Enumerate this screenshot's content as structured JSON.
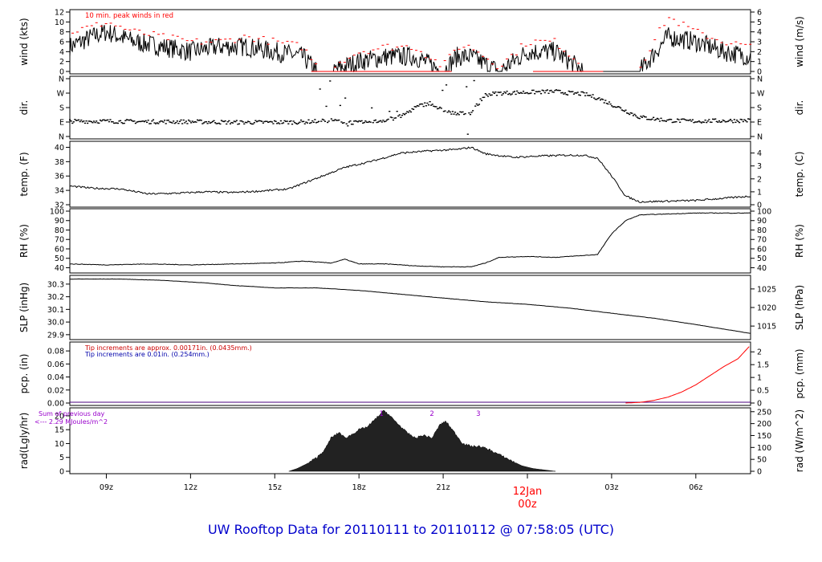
{
  "footer": {
    "title": "UW Rooftop Data for 20110111  to  20110112 @ 07:58:05  (UTC)"
  },
  "time_axis": {
    "ticks": [
      "09z",
      "12z",
      "15z",
      "18z",
      "21z",
      "00z",
      "03z",
      "06z"
    ],
    "day_marker": {
      "date": "12Jan",
      "hour": "00z",
      "color": "#ff0000"
    }
  },
  "colors": {
    "line": "#000000",
    "peak": "#ff0000",
    "pcp_line": "#ff0000",
    "note_blue": "#0000aa",
    "note_red": "#cc0000",
    "rad_note": "#9900cc",
    "rad_fill": "#222222"
  },
  "panels": {
    "wind": {
      "left_label": "wind (kts)",
      "right_label": "wind (m/s)",
      "left_ticks": [
        "0",
        "2",
        "4",
        "6",
        "8",
        "10",
        "12"
      ],
      "right_ticks": [
        "0",
        "1",
        "2",
        "3",
        "4",
        "5",
        "6"
      ],
      "note": "10 min. peak winds in red"
    },
    "dir": {
      "left_label": "dir.",
      "right_label": "dir.",
      "left_ticks": [
        "N",
        "E",
        "S",
        "W",
        "N"
      ],
      "right_ticks": [
        "N",
        "E",
        "S",
        "W",
        "N"
      ]
    },
    "temp": {
      "left_label": "temp. (F)",
      "right_label": "temp. (C)",
      "left_ticks": [
        "32",
        "34",
        "36",
        "38",
        "40"
      ],
      "right_ticks": [
        "0",
        "1",
        "2",
        "3",
        "4"
      ]
    },
    "rh": {
      "left_label": "RH (%)",
      "right_label": "RH (%)",
      "left_ticks": [
        "40",
        "50",
        "60",
        "70",
        "80",
        "90",
        "100"
      ],
      "right_ticks": [
        "40",
        "50",
        "60",
        "70",
        "80",
        "90",
        "100"
      ]
    },
    "slp": {
      "left_label": "SLP (inHg)",
      "right_label": "SLP (hPa)",
      "left_ticks": [
        "29.9",
        "30.0",
        "30.1",
        "30.2",
        "30.3"
      ],
      "right_ticks": [
        "1015",
        "1020",
        "1025"
      ]
    },
    "pcp": {
      "left_label": "pcp. (in)",
      "right_label": "pcp. (mm)",
      "left_ticks": [
        "0.00",
        "0.02",
        "0.04",
        "0.06",
        "0.08"
      ],
      "right_ticks": [
        "0",
        "0.5",
        "1",
        "1.5",
        "2"
      ],
      "note_red": "Tip increments are approx. 0.00171in. (0.0435mm.)",
      "note_blue": "Tip increments are 0.01in. (0.254mm.)"
    },
    "rad": {
      "left_label": "rad(Lgly/hr)",
      "right_label": "rad (W/m^2)",
      "left_ticks": [
        "0",
        "5",
        "10",
        "15",
        "20"
      ],
      "right_ticks": [
        "0",
        "50",
        "100",
        "150",
        "200",
        "250"
      ],
      "note1": "Sum of previous day",
      "note2": "<--- 2.29 MJoules/m^2",
      "markers": [
        "1",
        "2",
        "3"
      ]
    }
  },
  "chart_data": [
    {
      "type": "line",
      "title": "wind",
      "ylabel": "wind (kts)",
      "y2label": "wind (m/s)",
      "ylim": [
        0,
        12
      ],
      "x": [
        7.7,
        8.5,
        9.0,
        10.0,
        11.0,
        12.0,
        13.0,
        14.0,
        15.0,
        16.0,
        16.5,
        17.0,
        18.0,
        19.0,
        20.0,
        21.0,
        21.5,
        22.0,
        23.0,
        24.0,
        25.0,
        26.0,
        27.0,
        28.0,
        29.0,
        30.0,
        31.0,
        31.95
      ],
      "series": [
        {
          "values": [
            5,
            7,
            8,
            6,
            5,
            4,
            5,
            5,
            4,
            3,
            0,
            0,
            2,
            3,
            3,
            0,
            3,
            3,
            0,
            4,
            4,
            0,
            0,
            0,
            7,
            6,
            4,
            3
          ]
        },
        {
          "values": [
            8,
            9,
            10,
            8,
            7,
            6,
            6,
            7,
            6,
            5,
            1,
            1,
            4,
            5,
            5,
            1,
            5,
            5,
            1,
            6,
            6,
            1,
            1,
            1,
            11,
            8,
            6,
            5
          ]
        }
      ]
    },
    {
      "type": "scatter",
      "title": "dir.",
      "ylabel": "dir.",
      "ylim": [
        0,
        360
      ],
      "x": [
        7.7,
        9.0,
        10.5,
        12.0,
        13.5,
        15.0,
        16.0,
        16.5,
        17.0,
        17.5,
        18.0,
        18.5,
        19.0,
        19.5,
        20.0,
        20.5,
        21.0,
        21.5,
        22.0,
        22.5,
        23.0,
        24.0,
        25.0,
        25.5,
        26.0,
        26.5,
        27.0,
        28.0,
        29.0,
        30.0,
        31.0,
        31.95
      ],
      "values": [
        95,
        95,
        92,
        92,
        88,
        88,
        90,
        95,
        100,
        90,
        85,
        90,
        105,
        125,
        180,
        210,
        160,
        140,
        150,
        260,
        270,
        275,
        280,
        270,
        265,
        240,
        200,
        120,
        100,
        95,
        98,
        100
      ]
    },
    {
      "type": "line",
      "title": "temp.",
      "ylabel": "temp. (F)",
      "y2label": "temp. (C)",
      "ylim": [
        32,
        40.5
      ],
      "x": [
        7.7,
        8.5,
        9.5,
        10.5,
        11.5,
        12.5,
        13.5,
        14.5,
        15.5,
        16.5,
        17.5,
        18.5,
        19.5,
        20.5,
        21.5,
        22.0,
        22.5,
        23.5,
        24.5,
        25.5,
        26.0,
        26.5,
        27.0,
        27.5,
        28.0,
        29.0,
        30.0,
        31.0,
        31.95
      ],
      "values": [
        34.6,
        34.3,
        34.2,
        33.5,
        33.6,
        33.8,
        33.7,
        33.9,
        34.2,
        35.7,
        37.2,
        38.1,
        39.2,
        39.5,
        39.7,
        40.0,
        39.1,
        38.6,
        38.8,
        38.9,
        38.9,
        38.5,
        36.0,
        33.2,
        32.4,
        32.5,
        32.6,
        32.9,
        33.2
      ]
    },
    {
      "type": "line",
      "title": "RH",
      "ylabel": "RH (%)",
      "y2label": "RH (%)",
      "ylim": [
        37,
        100
      ],
      "x": [
        7.7,
        9.0,
        10.5,
        12.0,
        13.5,
        15.0,
        16.0,
        17.0,
        17.5,
        18.0,
        19.0,
        20.0,
        21.0,
        22.0,
        22.5,
        23.0,
        24.0,
        25.0,
        26.0,
        26.5,
        27.0,
        27.5,
        28.0,
        29.0,
        30.0,
        31.0,
        31.95
      ],
      "values": [
        44,
        43,
        44,
        43,
        44,
        45,
        47,
        45,
        49,
        44,
        44,
        42,
        41,
        41,
        45,
        51,
        52,
        51,
        53,
        54,
        76,
        90,
        96,
        97,
        98,
        98,
        98
      ]
    },
    {
      "type": "line",
      "title": "SLP",
      "ylabel": "SLP (inHg)",
      "y2label": "SLP (hPa)",
      "ylim": [
        29.88,
        30.35
      ],
      "x": [
        7.7,
        9.5,
        11.0,
        12.5,
        13.5,
        15.0,
        16.5,
        18.0,
        19.5,
        21.0,
        22.5,
        24.0,
        25.5,
        27.0,
        28.5,
        30.0,
        31.95
      ],
      "values": [
        30.34,
        30.34,
        30.33,
        30.31,
        30.29,
        30.27,
        30.27,
        30.25,
        30.22,
        30.19,
        30.16,
        30.14,
        30.11,
        30.07,
        30.03,
        29.98,
        29.91
      ]
    },
    {
      "type": "line",
      "title": "pcp.",
      "ylabel": "pcp. (in)",
      "y2label": "pcp. (mm)",
      "ylim": [
        0,
        0.09
      ],
      "x": [
        7.7,
        27.5,
        28.0,
        28.5,
        29.0,
        29.5,
        30.0,
        30.5,
        31.0,
        31.5,
        31.95
      ],
      "values": [
        0,
        0,
        0.001,
        0.004,
        0.009,
        0.017,
        0.028,
        0.042,
        0.056,
        0.068,
        0.089
      ]
    },
    {
      "type": "area",
      "title": "rad",
      "ylabel": "rad(Lgly/hr)",
      "y2label": "rad (W/m^2)",
      "ylim": [
        0,
        22
      ],
      "x": [
        15.5,
        15.8,
        16.2,
        16.5,
        16.8,
        17.0,
        17.3,
        17.5,
        17.7,
        18.0,
        18.3,
        18.6,
        18.9,
        19.1,
        19.4,
        19.7,
        20.0,
        20.3,
        20.6,
        20.9,
        21.1,
        21.4,
        21.7,
        22.0,
        22.3,
        22.6,
        23.0,
        23.4,
        23.8,
        24.2,
        24.6,
        25.0
      ],
      "values": [
        0,
        1,
        3,
        5,
        8,
        12,
        14,
        12,
        13,
        15,
        16,
        19,
        22,
        20,
        17,
        14,
        12,
        13,
        12,
        17,
        18,
        14,
        10,
        9,
        9,
        8,
        6,
        4,
        2,
        1,
        0.5,
        0
      ]
    }
  ]
}
